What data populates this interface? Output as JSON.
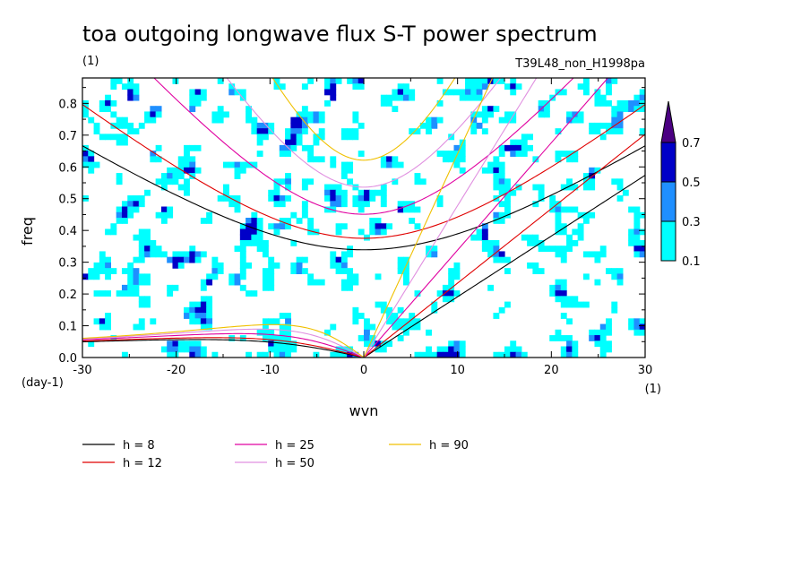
{
  "header": {
    "title": "toa outgoing longwave flux S-T power spectrum",
    "units": "(1)",
    "run_name": "T39L48_non_H1998pa"
  },
  "chart_data": {
    "type": "heatmap",
    "title": "toa outgoing longwave flux S-T power spectrum",
    "xlabel": "wvn",
    "x_units": "(1)",
    "ylabel": "freq",
    "y_units": "(day-1)",
    "xlim": [
      -30,
      30
    ],
    "ylim": [
      0,
      0.88
    ],
    "x_ticks": [
      "-30",
      "-20",
      "-10",
      "0",
      "10",
      "20",
      "30"
    ],
    "y_ticks": [
      "0.0",
      "0.1",
      "0.2",
      "0.3",
      "0.4",
      "0.5",
      "0.6",
      "0.7",
      "0.8"
    ],
    "contour_levels": [
      0.1,
      0.3,
      0.5,
      0.7
    ],
    "level_labels": [
      "0.1",
      "0.3",
      "0.5",
      "0.7"
    ],
    "level_colors": [
      "#00ffff",
      "#1f8fff",
      "#0000c8",
      "#4b0082"
    ],
    "dispersion_curves": [
      {
        "label": "h =  8",
        "h": 8,
        "color": "#000000",
        "style": "solid"
      },
      {
        "label": "h = 12",
        "h": 12,
        "color": "#e00000",
        "style": "solid"
      },
      {
        "label": "h = 25",
        "h": 25,
        "color": "#e000a0",
        "style": "solid"
      },
      {
        "label": "h = 50",
        "h": 50,
        "color": "#e090e0",
        "style": "solid"
      },
      {
        "label": "h = 90",
        "h": 90,
        "color": "#f0c000",
        "style": "solid"
      }
    ]
  }
}
